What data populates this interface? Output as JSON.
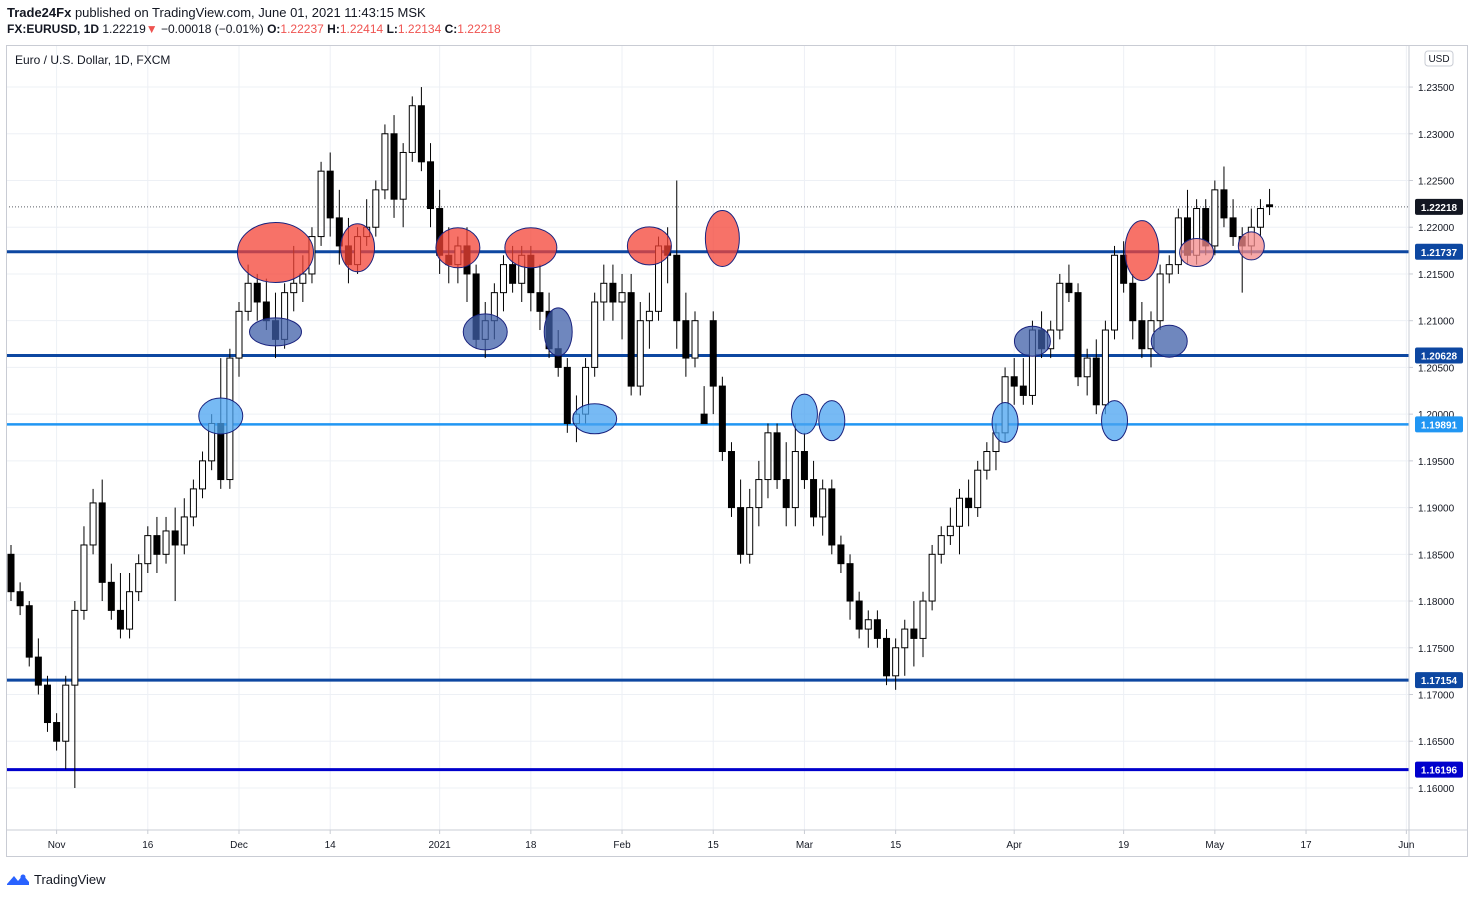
{
  "header": {
    "author": "Trade24Fx",
    "published": "published on TradingView.com, June 01, 2021 11:43:15 MSK",
    "symbol": "FX:EURUSD, 1D",
    "last": "1.22219",
    "change_arrow": "▼",
    "change": "−0.00018 (−0.01%)",
    "o_label": "O:",
    "o_value": "1.22237",
    "h_label": "H:",
    "h_value": "1.22414",
    "l_label": "L:",
    "l_value": "1.22134",
    "c_label": "C:",
    "c_value": "1.22218"
  },
  "chart_data": {
    "type": "candlestick",
    "title": "Euro / U.S. Dollar, 1D, FXCM",
    "currency": "USD",
    "ylim": [
      1.1555,
      1.2395
    ],
    "y_ticks": [
      "1.23500",
      "1.23000",
      "1.22500",
      "1.22000",
      "1.21500",
      "1.21000",
      "1.20500",
      "1.20000",
      "1.19500",
      "1.19000",
      "1.18500",
      "1.18000",
      "1.17500",
      "1.17000",
      "1.16500",
      "1.16000"
    ],
    "x_ticks": [
      {
        "label": "Nov",
        "i": 5
      },
      {
        "label": "16",
        "i": 15
      },
      {
        "label": "Dec",
        "i": 25
      },
      {
        "label": "14",
        "i": 35
      },
      {
        "label": "2021",
        "i": 47
      },
      {
        "label": "18",
        "i": 57
      },
      {
        "label": "Feb",
        "i": 67
      },
      {
        "label": "15",
        "i": 77
      },
      {
        "label": "Mar",
        "i": 87
      },
      {
        "label": "15",
        "i": 97
      },
      {
        "label": "Apr",
        "i": 110
      },
      {
        "label": "19",
        "i": 122
      },
      {
        "label": "May",
        "i": 132
      },
      {
        "label": "17",
        "i": 142
      },
      {
        "label": "Jun",
        "i": 153
      }
    ],
    "current_price": {
      "label": "1.22218",
      "value": 1.22218
    },
    "levels": [
      {
        "label": "1.21737",
        "value": 1.21737,
        "color": "#0d47a1",
        "width": 3
      },
      {
        "label": "1.20628",
        "value": 1.20628,
        "color": "#0d47a1",
        "width": 3
      },
      {
        "label": "1.19891",
        "value": 1.19891,
        "color": "#2196f3",
        "width": 2.5
      },
      {
        "label": "1.17154",
        "value": 1.17154,
        "color": "#0d47a1",
        "width": 3
      },
      {
        "label": "1.16196",
        "value": 1.16196,
        "color": "#0000cc",
        "width": 3
      }
    ],
    "candles": [
      [
        1.185,
        1.186,
        1.18,
        1.181
      ],
      [
        1.181,
        1.182,
        1.1785,
        1.1795
      ],
      [
        1.1795,
        1.18,
        1.173,
        1.174
      ],
      [
        1.174,
        1.176,
        1.17,
        1.171
      ],
      [
        1.171,
        1.172,
        1.166,
        1.167
      ],
      [
        1.167,
        1.168,
        1.164,
        1.165
      ],
      [
        1.165,
        1.172,
        1.162,
        1.171
      ],
      [
        1.171,
        1.18,
        1.16,
        1.179
      ],
      [
        1.179,
        1.188,
        1.178,
        1.186
      ],
      [
        1.186,
        1.192,
        1.185,
        1.1905
      ],
      [
        1.1905,
        1.193,
        1.18,
        1.182
      ],
      [
        1.182,
        1.184,
        1.178,
        1.179
      ],
      [
        1.179,
        1.183,
        1.176,
        1.177
      ],
      [
        1.177,
        1.183,
        1.176,
        1.181
      ],
      [
        1.181,
        1.185,
        1.18,
        1.184
      ],
      [
        1.184,
        1.188,
        1.183,
        1.187
      ],
      [
        1.187,
        1.189,
        1.183,
        1.185
      ],
      [
        1.185,
        1.189,
        1.184,
        1.1875
      ],
      [
        1.1875,
        1.19,
        1.18,
        1.186
      ],
      [
        1.186,
        1.191,
        1.185,
        1.189
      ],
      [
        1.189,
        1.193,
        1.188,
        1.192
      ],
      [
        1.192,
        1.196,
        1.191,
        1.195
      ],
      [
        1.195,
        1.2,
        1.194,
        1.199
      ],
      [
        1.199,
        1.206,
        1.192,
        1.193
      ],
      [
        1.193,
        1.207,
        1.192,
        1.206
      ],
      [
        1.206,
        1.212,
        1.204,
        1.211
      ],
      [
        1.211,
        1.216,
        1.21,
        1.214
      ],
      [
        1.214,
        1.215,
        1.21,
        1.212
      ],
      [
        1.212,
        1.2145,
        1.209,
        1.21
      ],
      [
        1.21,
        1.213,
        1.206,
        1.208
      ],
      [
        1.208,
        1.214,
        1.207,
        1.213
      ],
      [
        1.213,
        1.218,
        1.211,
        1.214
      ],
      [
        1.214,
        1.217,
        1.212,
        1.215
      ],
      [
        1.215,
        1.22,
        1.214,
        1.219
      ],
      [
        1.219,
        1.227,
        1.218,
        1.226
      ],
      [
        1.226,
        1.228,
        1.219,
        1.221
      ],
      [
        1.221,
        1.224,
        1.216,
        1.218
      ],
      [
        1.218,
        1.221,
        1.214,
        1.216
      ],
      [
        1.216,
        1.22,
        1.215,
        1.219
      ],
      [
        1.219,
        1.223,
        1.218,
        1.22
      ],
      [
        1.22,
        1.225,
        1.219,
        1.224
      ],
      [
        1.224,
        1.231,
        1.223,
        1.23
      ],
      [
        1.23,
        1.232,
        1.221,
        1.223
      ],
      [
        1.223,
        1.229,
        1.22,
        1.228
      ],
      [
        1.228,
        1.234,
        1.227,
        1.233
      ],
      [
        1.233,
        1.235,
        1.226,
        1.227
      ],
      [
        1.227,
        1.229,
        1.22,
        1.222
      ],
      [
        1.222,
        1.224,
        1.215,
        1.217
      ],
      [
        1.217,
        1.22,
        1.214,
        1.216
      ],
      [
        1.216,
        1.219,
        1.214,
        1.218
      ],
      [
        1.218,
        1.22,
        1.212,
        1.215
      ],
      [
        1.215,
        1.216,
        1.207,
        1.208
      ],
      [
        1.208,
        1.212,
        1.206,
        1.21
      ],
      [
        1.21,
        1.214,
        1.208,
        1.213
      ],
      [
        1.213,
        1.217,
        1.211,
        1.216
      ],
      [
        1.216,
        1.218,
        1.213,
        1.214
      ],
      [
        1.214,
        1.218,
        1.212,
        1.217
      ],
      [
        1.217,
        1.218,
        1.211,
        1.213
      ],
      [
        1.213,
        1.216,
        1.209,
        1.211
      ],
      [
        1.211,
        1.213,
        1.206,
        1.207
      ],
      [
        1.207,
        1.209,
        1.204,
        1.205
      ],
      [
        1.205,
        1.206,
        1.198,
        1.199
      ],
      [
        1.199,
        1.202,
        1.197,
        1.2
      ],
      [
        1.2,
        1.206,
        1.199,
        1.205
      ],
      [
        1.205,
        1.213,
        1.204,
        1.212
      ],
      [
        1.212,
        1.216,
        1.21,
        1.214
      ],
      [
        1.214,
        1.216,
        1.21,
        1.212
      ],
      [
        1.212,
        1.215,
        1.208,
        1.213
      ],
      [
        1.213,
        1.215,
        1.202,
        1.203
      ],
      [
        1.203,
        1.212,
        1.202,
        1.21
      ],
      [
        1.21,
        1.213,
        1.207,
        1.211
      ],
      [
        1.211,
        1.219,
        1.21,
        1.218
      ],
      [
        1.218,
        1.22,
        1.214,
        1.217
      ],
      [
        1.217,
        1.225,
        1.207,
        1.21
      ],
      [
        1.21,
        1.213,
        1.204,
        1.206
      ],
      [
        1.206,
        1.211,
        1.205,
        1.21
      ],
      [
        1.2,
        1.203,
        1.199,
        1.199
      ],
      [
        1.21,
        1.211,
        1.2,
        1.203
      ],
      [
        1.203,
        1.204,
        1.195,
        1.196
      ],
      [
        1.196,
        1.197,
        1.189,
        1.19
      ],
      [
        1.19,
        1.193,
        1.184,
        1.185
      ],
      [
        1.185,
        1.192,
        1.184,
        1.19
      ],
      [
        1.19,
        1.195,
        1.188,
        1.193
      ],
      [
        1.193,
        1.199,
        1.191,
        1.198
      ],
      [
        1.198,
        1.199,
        1.192,
        1.193
      ],
      [
        1.193,
        1.197,
        1.188,
        1.19
      ],
      [
        1.19,
        1.199,
        1.188,
        1.196
      ],
      [
        1.196,
        1.198,
        1.192,
        1.193
      ],
      [
        1.193,
        1.195,
        1.188,
        1.189
      ],
      [
        1.189,
        1.193,
        1.187,
        1.192
      ],
      [
        1.192,
        1.193,
        1.185,
        1.186
      ],
      [
        1.186,
        1.187,
        1.183,
        1.184
      ],
      [
        1.184,
        1.185,
        1.178,
        1.18
      ],
      [
        1.18,
        1.181,
        1.176,
        1.177
      ],
      [
        1.177,
        1.179,
        1.175,
        1.178
      ],
      [
        1.178,
        1.179,
        1.175,
        1.176
      ],
      [
        1.176,
        1.177,
        1.171,
        1.172
      ],
      [
        1.172,
        1.176,
        1.1705,
        1.175
      ],
      [
        1.175,
        1.178,
        1.172,
        1.177
      ],
      [
        1.177,
        1.18,
        1.173,
        1.176
      ],
      [
        1.176,
        1.181,
        1.174,
        1.18
      ],
      [
        1.18,
        1.186,
        1.179,
        1.185
      ],
      [
        1.185,
        1.188,
        1.184,
        1.187
      ],
      [
        1.187,
        1.19,
        1.186,
        1.188
      ],
      [
        1.188,
        1.192,
        1.185,
        1.191
      ],
      [
        1.191,
        1.193,
        1.188,
        1.19
      ],
      [
        1.19,
        1.195,
        1.189,
        1.194
      ],
      [
        1.194,
        1.197,
        1.193,
        1.196
      ],
      [
        1.196,
        1.199,
        1.194,
        1.198
      ],
      [
        1.198,
        1.205,
        1.197,
        1.204
      ],
      [
        1.204,
        1.206,
        1.201,
        1.203
      ],
      [
        1.203,
        1.206,
        1.201,
        1.202
      ],
      [
        1.202,
        1.21,
        1.201,
        1.209
      ],
      [
        1.209,
        1.211,
        1.206,
        1.207
      ],
      [
        1.207,
        1.21,
        1.206,
        1.209
      ],
      [
        1.209,
        1.215,
        1.208,
        1.214
      ],
      [
        1.214,
        1.216,
        1.212,
        1.213
      ],
      [
        1.213,
        1.214,
        1.203,
        1.204
      ],
      [
        1.204,
        1.207,
        1.202,
        1.206
      ],
      [
        1.206,
        1.208,
        1.2,
        1.201
      ],
      [
        1.201,
        1.21,
        1.2,
        1.209
      ],
      [
        1.209,
        1.218,
        1.208,
        1.217
      ],
      [
        1.217,
        1.2185,
        1.213,
        1.214
      ],
      [
        1.214,
        1.215,
        1.208,
        1.21
      ],
      [
        1.21,
        1.212,
        1.206,
        1.207
      ],
      [
        1.207,
        1.211,
        1.205,
        1.21
      ],
      [
        1.21,
        1.216,
        1.209,
        1.215
      ],
      [
        1.215,
        1.217,
        1.214,
        1.216
      ],
      [
        1.216,
        1.222,
        1.215,
        1.221
      ],
      [
        1.221,
        1.224,
        1.216,
        1.217
      ],
      [
        1.217,
        1.223,
        1.216,
        1.222
      ],
      [
        1.222,
        1.223,
        1.217,
        1.218
      ],
      [
        1.218,
        1.225,
        1.217,
        1.224
      ],
      [
        1.224,
        1.2265,
        1.22,
        1.221
      ],
      [
        1.221,
        1.223,
        1.218,
        1.219
      ],
      [
        1.219,
        1.22,
        1.213,
        1.218
      ],
      [
        1.218,
        1.222,
        1.217,
        1.22
      ],
      [
        1.22,
        1.223,
        1.219,
        1.222
      ],
      [
        1.2224,
        1.2241,
        1.2213,
        1.2222
      ]
    ],
    "markers": [
      {
        "i": 29,
        "y": 1.2173,
        "rx": 38,
        "ry": 30,
        "fill": "#f44336"
      },
      {
        "i": 29,
        "y": 1.2088,
        "rx": 26,
        "ry": 14,
        "fill": "#3f5fa8"
      },
      {
        "i": 23,
        "y": 1.1998,
        "rx": 22,
        "ry": 18,
        "fill": "#4aa3f0"
      },
      {
        "i": 38,
        "y": 1.2178,
        "rx": 17,
        "ry": 24,
        "fill": "#f44336"
      },
      {
        "i": 49,
        "y": 1.2178,
        "rx": 22,
        "ry": 20,
        "fill": "#f44336"
      },
      {
        "i": 52,
        "y": 1.2088,
        "rx": 22,
        "ry": 18,
        "fill": "#3f5fa8"
      },
      {
        "i": 57,
        "y": 1.2178,
        "rx": 26,
        "ry": 20,
        "fill": "#f44336"
      },
      {
        "i": 60,
        "y": 1.2088,
        "rx": 14,
        "ry": 24,
        "fill": "#3f5fa8"
      },
      {
        "i": 64,
        "y": 1.1995,
        "rx": 22,
        "ry": 15,
        "fill": "#4aa3f0"
      },
      {
        "i": 70,
        "y": 1.218,
        "rx": 22,
        "ry": 19,
        "fill": "#f44336"
      },
      {
        "i": 78,
        "y": 1.2188,
        "rx": 17,
        "ry": 28,
        "fill": "#f44336"
      },
      {
        "i": 87,
        "y": 1.2,
        "rx": 13,
        "ry": 20,
        "fill": "#4aa3f0"
      },
      {
        "i": 90,
        "y": 1.1993,
        "rx": 13,
        "ry": 20,
        "fill": "#4aa3f0"
      },
      {
        "i": 109,
        "y": 1.1991,
        "rx": 13,
        "ry": 20,
        "fill": "#4aa3f0"
      },
      {
        "i": 112,
        "y": 1.2078,
        "rx": 18,
        "ry": 15,
        "fill": "#3f5fa8"
      },
      {
        "i": 121,
        "y": 1.1993,
        "rx": 13,
        "ry": 20,
        "fill": "#4aa3f0"
      },
      {
        "i": 124,
        "y": 1.2175,
        "rx": 17,
        "ry": 30,
        "fill": "#f44336"
      },
      {
        "i": 127,
        "y": 1.2078,
        "rx": 18,
        "ry": 16,
        "fill": "#3f5fa8"
      },
      {
        "i": 130,
        "y": 1.2173,
        "rx": 17,
        "ry": 14,
        "fill": "#f48b8b"
      },
      {
        "i": 136,
        "y": 1.218,
        "rx": 13,
        "ry": 14,
        "fill": "#f48b8b"
      }
    ]
  },
  "footer": {
    "brand": "TradingView"
  }
}
